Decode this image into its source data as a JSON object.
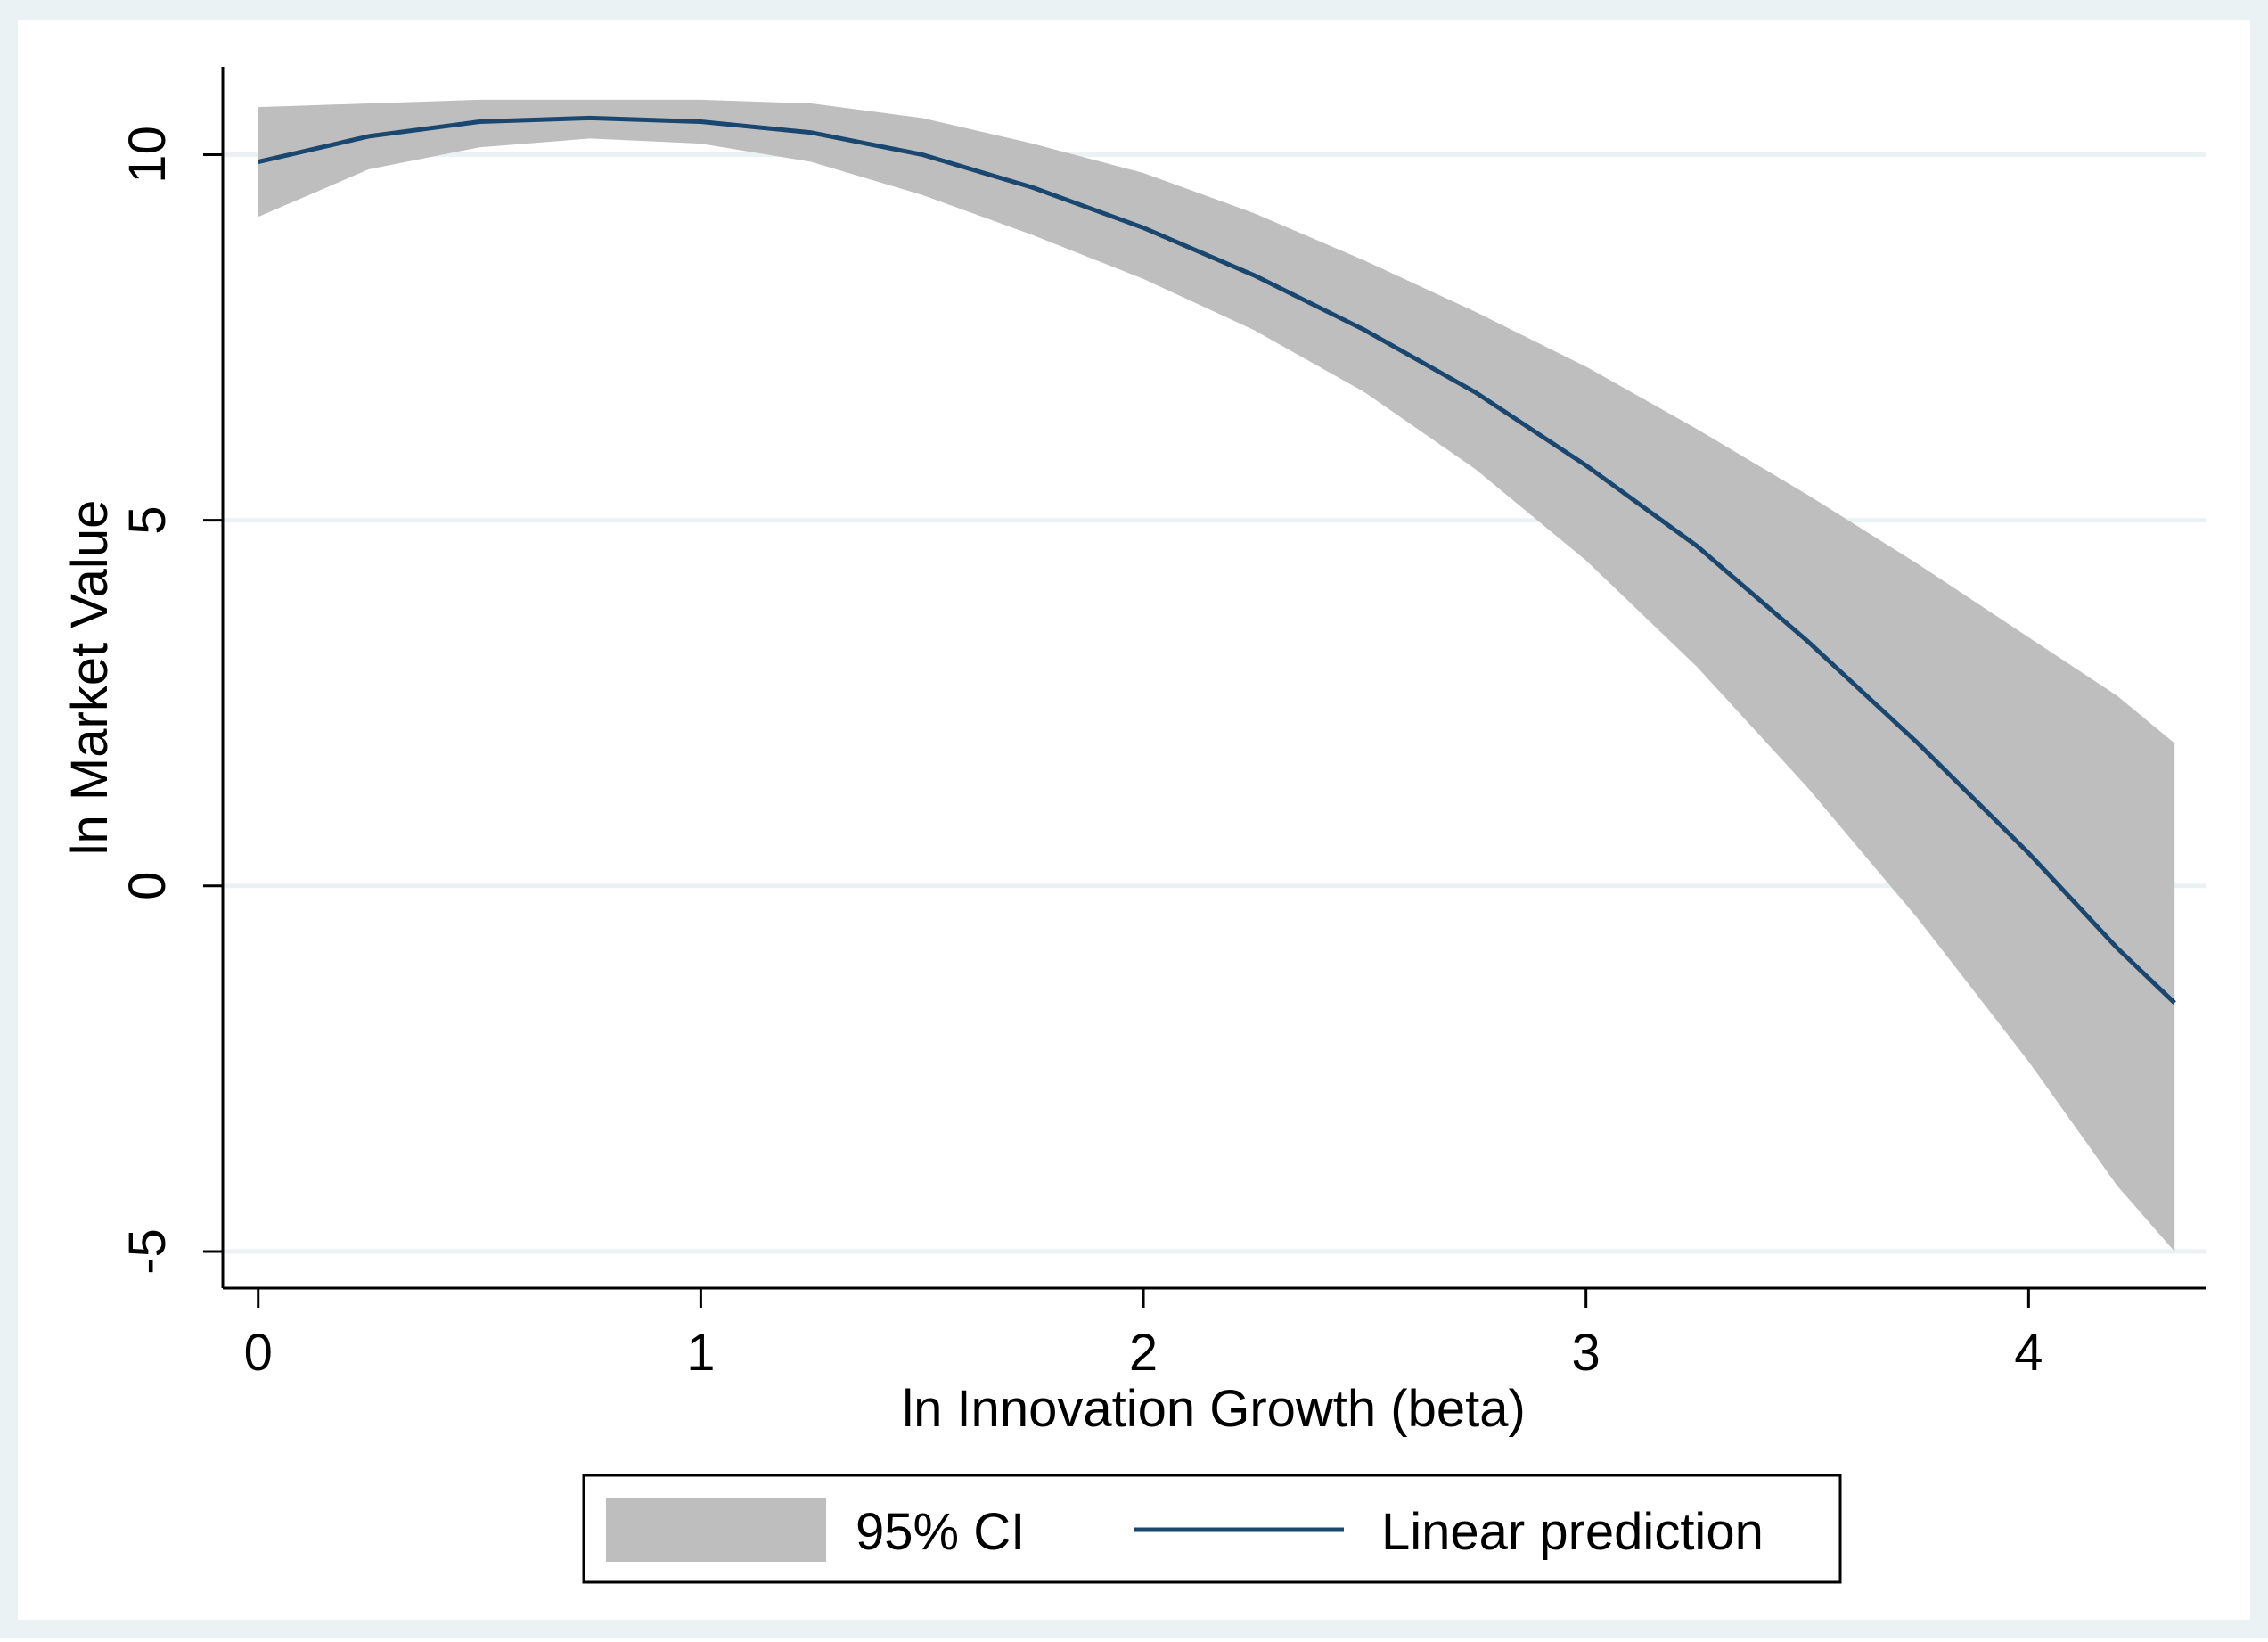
{
  "colors": {
    "outer_background": "#eaf2f3",
    "plot_background": "#ffffff",
    "gridline": "#eaf2f3",
    "ci_fill": "#bebebe",
    "prediction_line": "#1a476f",
    "axis": "#000000"
  },
  "chart_data": {
    "type": "line",
    "title": "",
    "xlabel": "ln Innovation Growth (beta)",
    "ylabel": "ln Market Value",
    "xlim": [
      -0.08,
      4.4
    ],
    "ylim": [
      -5.5,
      11.2
    ],
    "x_ticks": [
      {
        "value": 0,
        "label": "0"
      },
      {
        "value": 1,
        "label": "1"
      },
      {
        "value": 2,
        "label": "2"
      },
      {
        "value": 3,
        "label": "3"
      },
      {
        "value": 4,
        "label": "4"
      }
    ],
    "y_ticks": [
      {
        "value": -5,
        "label": "-5"
      },
      {
        "value": 0,
        "label": "0"
      },
      {
        "value": 5,
        "label": "5"
      },
      {
        "value": 10,
        "label": "10"
      }
    ],
    "grid": "horizontal",
    "legend_position": "bottom",
    "series": [
      {
        "name": "95% CI",
        "kind": "band",
        "x": [
          0,
          0.25,
          0.5,
          0.75,
          1.0,
          1.25,
          1.5,
          1.75,
          2.0,
          2.25,
          2.5,
          2.75,
          3.0,
          3.25,
          3.5,
          3.75,
          4.0,
          4.2,
          4.33
        ],
        "lower": [
          9.15,
          9.8,
          10.1,
          10.22,
          10.15,
          9.9,
          9.45,
          8.9,
          8.3,
          7.6,
          6.75,
          5.7,
          4.45,
          3.0,
          1.35,
          -0.45,
          -2.4,
          -4.1,
          -5.0
        ],
        "upper": [
          10.65,
          10.7,
          10.75,
          10.75,
          10.75,
          10.7,
          10.5,
          10.15,
          9.75,
          9.2,
          8.55,
          7.85,
          7.1,
          6.25,
          5.35,
          4.4,
          3.4,
          2.6,
          1.95
        ]
      },
      {
        "name": "Linear prediction",
        "kind": "line",
        "x": [
          0,
          0.25,
          0.5,
          0.75,
          1.0,
          1.25,
          1.5,
          1.75,
          2.0,
          2.25,
          2.5,
          2.75,
          3.0,
          3.25,
          3.5,
          3.75,
          4.0,
          4.2,
          4.33
        ],
        "y": [
          9.9,
          10.25,
          10.45,
          10.5,
          10.45,
          10.3,
          10.0,
          9.55,
          9.0,
          8.35,
          7.6,
          6.75,
          5.75,
          4.65,
          3.35,
          1.95,
          0.45,
          -0.85,
          -1.6
        ]
      }
    ]
  }
}
